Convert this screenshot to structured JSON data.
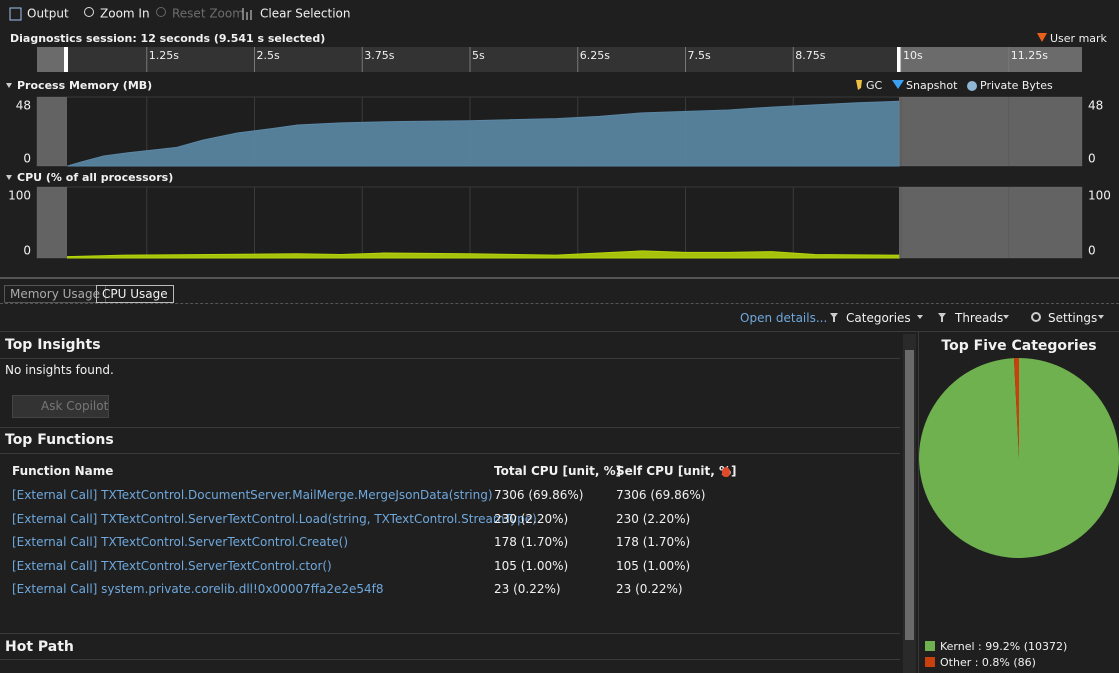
{
  "toolbar": {
    "items": [
      "Output",
      "Zoom In",
      "Reset Zoom",
      "Clear Selection"
    ]
  },
  "session": {
    "title": "Diagnostics session: 12 seconds (9.541 s selected)",
    "user_mark": "User mark"
  },
  "timeline": {
    "xlim": [
      0,
      12
    ],
    "xticks": [
      {
        "value": 1.25,
        "label": "1.25s"
      },
      {
        "value": 2.5,
        "label": "2.5s"
      },
      {
        "value": 3.75,
        "label": "3.75s"
      },
      {
        "value": 5,
        "label": "5s"
      },
      {
        "value": 6.25,
        "label": "6.25s"
      },
      {
        "value": 7.5,
        "label": "7.5s"
      },
      {
        "value": 8.75,
        "label": "8.75s"
      },
      {
        "value": 10,
        "label": "10s"
      },
      {
        "value": 11.25,
        "label": "11.25s"
      }
    ]
  },
  "memory_chart": {
    "type": "area",
    "title": "Process Memory (MB)",
    "legend": [
      "GC",
      "Snapshot",
      "Private Bytes"
    ],
    "ylim": [
      0,
      48
    ],
    "yticks": [
      0,
      48
    ],
    "color": "#5b88a6",
    "x": [
      0.33,
      0.5,
      0.75,
      1.0,
      1.3,
      1.6,
      1.9,
      2.3,
      2.7,
      3.0,
      3.5,
      4.2,
      5.0,
      6.0,
      6.5,
      7.0,
      8.0,
      8.5,
      9.0,
      9.5,
      9.98
    ],
    "values": [
      0,
      3,
      7,
      9,
      11,
      13,
      18,
      23,
      26,
      28.5,
      30,
      31,
      31.5,
      33,
      34.5,
      37,
      39,
      41,
      42.5,
      44,
      45
    ]
  },
  "cpu_chart": {
    "type": "area",
    "title": "CPU (% of all processors)",
    "ylim": [
      0,
      100
    ],
    "yticks": [
      0,
      100
    ],
    "color": "#b5d40a",
    "x": [
      0.33,
      1.0,
      2.0,
      3.0,
      3.5,
      4.0,
      5.0,
      6.0,
      6.5,
      7.0,
      7.5,
      8.0,
      8.5,
      9.0,
      9.98
    ],
    "values": [
      2,
      4,
      5,
      6,
      5,
      7,
      6,
      4,
      7,
      10,
      8,
      8,
      9,
      5,
      4
    ]
  },
  "tabs": [
    "Memory Usage",
    "CPU Usage"
  ],
  "report_toolbar": {
    "open_details": "Open details...",
    "filters": [
      "Categories",
      "Threads",
      "Settings"
    ]
  },
  "insights": {
    "title": "Top Insights",
    "message": "No insights found.",
    "button": "Ask Copilot"
  },
  "functions": {
    "title": "Top Functions",
    "columns": [
      "Function Name",
      "Total CPU [unit, %]",
      "Self CPU [unit, %]"
    ],
    "rows": [
      [
        "[External Call] TXTextControl.DocumentServer.MailMerge.MergeJsonData(string)",
        "7306 (69.86%)",
        "7306 (69.86%)"
      ],
      [
        "[External Call] TXTextControl.ServerTextControl.Load(string, TXTextControl.StreamType)",
        "230 (2.20%)",
        "230 (2.20%)"
      ],
      [
        "[External Call] TXTextControl.ServerTextControl.Create()",
        "178 (1.70%)",
        "178 (1.70%)"
      ],
      [
        "[External Call] TXTextControl.ServerTextControl.ctor()",
        "105 (1.00%)",
        "105 (1.00%)"
      ],
      [
        "[External Call] system.private.corelib.dll!0x00007ffa2e2e54f8",
        "23 (0.22%)",
        "23 (0.22%)"
      ]
    ]
  },
  "hot_path": {
    "title": "Hot Path"
  },
  "categories_chart": {
    "type": "pie",
    "title": "Top Five Categories",
    "labels": [
      "Kernel : 99.2% (10372)",
      "Other : 0.8% (86)"
    ],
    "values": [
      99.2,
      0.8
    ],
    "colors": [
      "#6fb04f",
      "#c8400c"
    ]
  }
}
